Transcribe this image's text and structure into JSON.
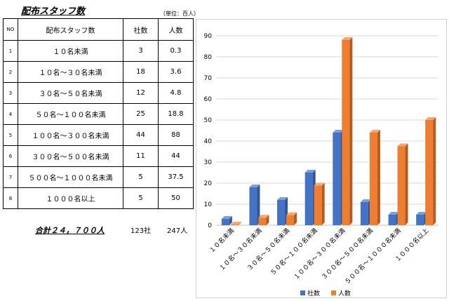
{
  "title": "配布スタッフ数",
  "unit_note": "（単位：百人）",
  "table": {
    "headers": [
      "NO",
      "配布スタッフ数",
      "社数",
      "人数"
    ],
    "rows": [
      [
        "1",
        "１０名未満",
        "3",
        "0.3"
      ],
      [
        "2",
        "１０名～３０名未満",
        "18",
        "3.6"
      ],
      [
        "3",
        "３０名～５０名未満",
        "12",
        "4.8"
      ],
      [
        "4",
        "５０名～１００名未満",
        "25",
        "18.8"
      ],
      [
        "5",
        "１００名～３００名未満",
        "44",
        "88"
      ],
      [
        "6",
        "３００名～５００名未満",
        "11",
        "44"
      ],
      [
        "7",
        "５００名～１０００名未満",
        "5",
        "37.5"
      ],
      [
        "8",
        "１０００名以上",
        "5",
        "50"
      ]
    ]
  },
  "totals": {
    "label": "合計２４，７００人",
    "companies": "123社",
    "people": "247人"
  },
  "chart_data": {
    "type": "bar",
    "categories": [
      "１０名未満",
      "１０名～３０名未満",
      "３０名～５０名未満",
      "５０名～１００名未満",
      "１００名～３００名未満",
      "３００名～５００名未満",
      "５００名～１０００名未満",
      "１０００名以上"
    ],
    "series": [
      {
        "name": "社数",
        "values": [
          3,
          18,
          12,
          25,
          44,
          11,
          5,
          5
        ]
      },
      {
        "name": "人数",
        "values": [
          0.3,
          3.6,
          4.8,
          18.8,
          88,
          44,
          37.5,
          50
        ]
      }
    ],
    "ylim": [
      0,
      90
    ],
    "yticks": [
      0,
      10,
      20,
      30,
      40,
      50,
      60,
      70,
      80,
      90
    ],
    "grid": true,
    "legend": "bottom",
    "colors": {
      "series1": "#4472C4",
      "series2": "#ED7D31"
    }
  }
}
